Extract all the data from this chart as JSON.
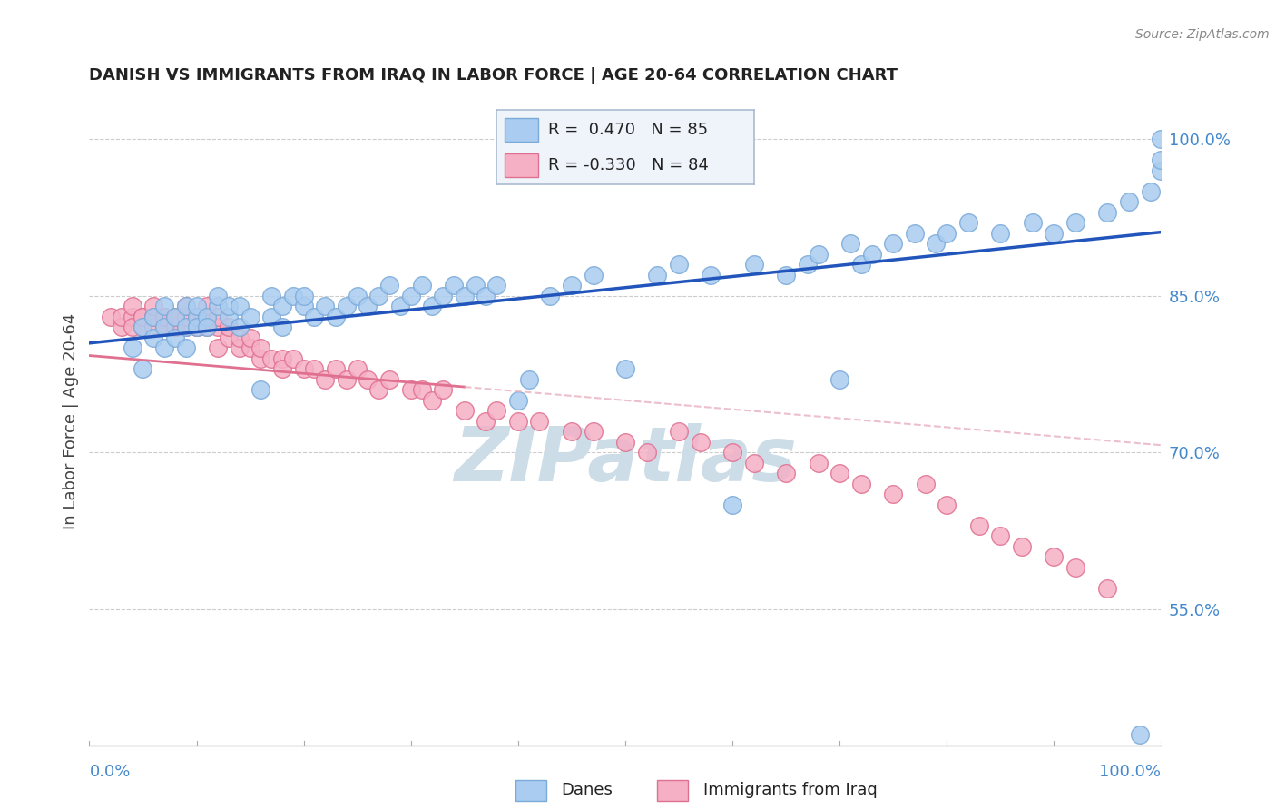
{
  "title": "DANISH VS IMMIGRANTS FROM IRAQ IN LABOR FORCE | AGE 20-64 CORRELATION CHART",
  "source": "Source: ZipAtlas.com",
  "ylabel": "In Labor Force | Age 20-64",
  "xlim": [
    0.0,
    1.0
  ],
  "ylim": [
    0.42,
    1.04
  ],
  "danes_R": 0.47,
  "danes_N": 85,
  "iraq_R": -0.33,
  "iraq_N": 84,
  "danes_color": "#aaccf0",
  "danes_edge_color": "#7aaad8",
  "iraq_color": "#f5b0c5",
  "iraq_edge_color": "#e07090",
  "danes_line_color": "#2255bb",
  "iraq_line_color": "#e07090",
  "iraq_line_dashed_color": "#e8b0c0",
  "watermark_color": "#ccdde8",
  "background_color": "#ffffff",
  "legend_box_color": "#eef4fa",
  "legend_border_color": "#aabbd0",
  "danes_R_color": "#2255bb",
  "iraq_R_color": "#e07090",
  "ytick_vals": [
    0.55,
    0.7,
    0.85,
    1.0
  ],
  "ytick_labels": [
    "55.0%",
    "70.0%",
    "85.0%",
    "100.0%"
  ],
  "danes_scatter_x": [
    0.04,
    0.05,
    0.05,
    0.06,
    0.06,
    0.07,
    0.07,
    0.07,
    0.08,
    0.08,
    0.09,
    0.09,
    0.09,
    0.1,
    0.1,
    0.1,
    0.11,
    0.11,
    0.12,
    0.12,
    0.13,
    0.13,
    0.14,
    0.14,
    0.15,
    0.16,
    0.17,
    0.17,
    0.18,
    0.18,
    0.19,
    0.2,
    0.2,
    0.21,
    0.22,
    0.23,
    0.24,
    0.25,
    0.26,
    0.27,
    0.28,
    0.29,
    0.3,
    0.31,
    0.32,
    0.33,
    0.34,
    0.35,
    0.36,
    0.37,
    0.38,
    0.4,
    0.41,
    0.43,
    0.45,
    0.47,
    0.5,
    0.53,
    0.55,
    0.58,
    0.6,
    0.62,
    0.65,
    0.67,
    0.68,
    0.7,
    0.71,
    0.72,
    0.73,
    0.75,
    0.77,
    0.79,
    0.8,
    0.82,
    0.85,
    0.88,
    0.9,
    0.92,
    0.95,
    0.97,
    0.98,
    0.99,
    1.0,
    1.0,
    1.0
  ],
  "danes_scatter_y": [
    0.8,
    0.82,
    0.78,
    0.83,
    0.81,
    0.84,
    0.82,
    0.8,
    0.83,
    0.81,
    0.84,
    0.82,
    0.8,
    0.83,
    0.82,
    0.84,
    0.83,
    0.82,
    0.84,
    0.85,
    0.83,
    0.84,
    0.82,
    0.84,
    0.83,
    0.76,
    0.85,
    0.83,
    0.84,
    0.82,
    0.85,
    0.84,
    0.85,
    0.83,
    0.84,
    0.83,
    0.84,
    0.85,
    0.84,
    0.85,
    0.86,
    0.84,
    0.85,
    0.86,
    0.84,
    0.85,
    0.86,
    0.85,
    0.86,
    0.85,
    0.86,
    0.75,
    0.77,
    0.85,
    0.86,
    0.87,
    0.78,
    0.87,
    0.88,
    0.87,
    0.65,
    0.88,
    0.87,
    0.88,
    0.89,
    0.77,
    0.9,
    0.88,
    0.89,
    0.9,
    0.91,
    0.9,
    0.91,
    0.92,
    0.91,
    0.92,
    0.91,
    0.92,
    0.93,
    0.94,
    0.43,
    0.95,
    0.97,
    0.98,
    1.0
  ],
  "iraq_scatter_x": [
    0.02,
    0.03,
    0.03,
    0.04,
    0.04,
    0.04,
    0.05,
    0.05,
    0.05,
    0.06,
    0.06,
    0.06,
    0.06,
    0.07,
    0.07,
    0.07,
    0.07,
    0.08,
    0.08,
    0.08,
    0.08,
    0.09,
    0.09,
    0.09,
    0.1,
    0.1,
    0.1,
    0.11,
    0.11,
    0.11,
    0.12,
    0.12,
    0.12,
    0.13,
    0.13,
    0.14,
    0.14,
    0.15,
    0.15,
    0.16,
    0.16,
    0.17,
    0.18,
    0.18,
    0.19,
    0.2,
    0.21,
    0.22,
    0.23,
    0.24,
    0.25,
    0.26,
    0.27,
    0.28,
    0.3,
    0.31,
    0.32,
    0.33,
    0.35,
    0.37,
    0.38,
    0.4,
    0.42,
    0.45,
    0.47,
    0.5,
    0.52,
    0.55,
    0.57,
    0.6,
    0.62,
    0.65,
    0.68,
    0.7,
    0.72,
    0.75,
    0.78,
    0.8,
    0.83,
    0.85,
    0.87,
    0.9,
    0.92,
    0.95
  ],
  "iraq_scatter_y": [
    0.83,
    0.82,
    0.83,
    0.83,
    0.82,
    0.84,
    0.83,
    0.82,
    0.83,
    0.83,
    0.82,
    0.83,
    0.84,
    0.82,
    0.83,
    0.82,
    0.83,
    0.82,
    0.83,
    0.82,
    0.83,
    0.82,
    0.83,
    0.84,
    0.82,
    0.83,
    0.82,
    0.82,
    0.83,
    0.84,
    0.82,
    0.83,
    0.8,
    0.81,
    0.82,
    0.8,
    0.81,
    0.8,
    0.81,
    0.79,
    0.8,
    0.79,
    0.79,
    0.78,
    0.79,
    0.78,
    0.78,
    0.77,
    0.78,
    0.77,
    0.78,
    0.77,
    0.76,
    0.77,
    0.76,
    0.76,
    0.75,
    0.76,
    0.74,
    0.73,
    0.74,
    0.73,
    0.73,
    0.72,
    0.72,
    0.71,
    0.7,
    0.72,
    0.71,
    0.7,
    0.69,
    0.68,
    0.69,
    0.68,
    0.67,
    0.66,
    0.67,
    0.65,
    0.63,
    0.62,
    0.61,
    0.6,
    0.59,
    0.57
  ]
}
